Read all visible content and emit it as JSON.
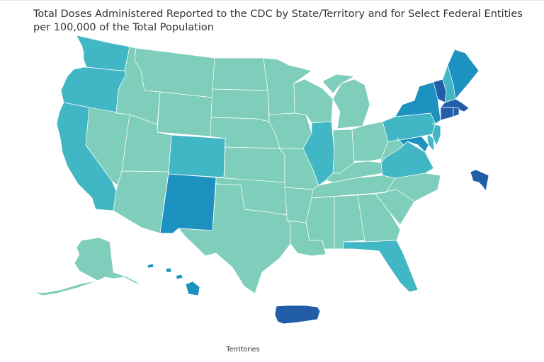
{
  "map": {
    "title_line1": "Total Doses Administered Reported to the CDC by State/Territory and for Select Federal Entities",
    "title_line2": "per 100,000 of the Total Population",
    "territories_label": "Territories"
  },
  "colors": {
    "lowest": "#7fcdbb",
    "low": "#41b6c4",
    "mid": "#1d91c0",
    "high": "#225ea8",
    "stroke": "#ffffff"
  },
  "regions": [
    {
      "name": "Washington",
      "level": "low"
    },
    {
      "name": "Oregon",
      "level": "low"
    },
    {
      "name": "California",
      "level": "low"
    },
    {
      "name": "Nevada",
      "level": "lowest"
    },
    {
      "name": "Idaho",
      "level": "lowest"
    },
    {
      "name": "Montana",
      "level": "lowest"
    },
    {
      "name": "Wyoming",
      "level": "lowest"
    },
    {
      "name": "Utah",
      "level": "lowest"
    },
    {
      "name": "Arizona",
      "level": "lowest"
    },
    {
      "name": "Colorado",
      "level": "low"
    },
    {
      "name": "New Mexico",
      "level": "mid"
    },
    {
      "name": "North Dakota",
      "level": "lowest"
    },
    {
      "name": "South Dakota",
      "level": "lowest"
    },
    {
      "name": "Nebraska",
      "level": "lowest"
    },
    {
      "name": "Kansas",
      "level": "lowest"
    },
    {
      "name": "Oklahoma",
      "level": "lowest"
    },
    {
      "name": "Texas",
      "level": "lowest"
    },
    {
      "name": "Minnesota",
      "level": "lowest"
    },
    {
      "name": "Iowa",
      "level": "lowest"
    },
    {
      "name": "Missouri",
      "level": "lowest"
    },
    {
      "name": "Arkansas",
      "level": "lowest"
    },
    {
      "name": "Louisiana",
      "level": "lowest"
    },
    {
      "name": "Wisconsin",
      "level": "lowest"
    },
    {
      "name": "Illinois",
      "level": "low"
    },
    {
      "name": "Michigan",
      "level": "lowest"
    },
    {
      "name": "Indiana",
      "level": "lowest"
    },
    {
      "name": "Ohio",
      "level": "lowest"
    },
    {
      "name": "Kentucky",
      "level": "lowest"
    },
    {
      "name": "Tennessee",
      "level": "lowest"
    },
    {
      "name": "Mississippi",
      "level": "lowest"
    },
    {
      "name": "Alabama",
      "level": "lowest"
    },
    {
      "name": "Georgia",
      "level": "lowest"
    },
    {
      "name": "Florida",
      "level": "low"
    },
    {
      "name": "South Carolina",
      "level": "lowest"
    },
    {
      "name": "North Carolina",
      "level": "lowest"
    },
    {
      "name": "Virginia",
      "level": "low"
    },
    {
      "name": "West Virginia",
      "level": "lowest"
    },
    {
      "name": "Maryland",
      "level": "mid"
    },
    {
      "name": "Delaware",
      "level": "low"
    },
    {
      "name": "New Jersey",
      "level": "low"
    },
    {
      "name": "Pennsylvania",
      "level": "low"
    },
    {
      "name": "New York",
      "level": "mid"
    },
    {
      "name": "Vermont",
      "level": "high"
    },
    {
      "name": "New Hampshire",
      "level": "low"
    },
    {
      "name": "Maine",
      "level": "mid"
    },
    {
      "name": "Massachusetts",
      "level": "high"
    },
    {
      "name": "Connecticut",
      "level": "high"
    },
    {
      "name": "Rhode Island",
      "level": "high"
    },
    {
      "name": "Alaska",
      "level": "lowest"
    },
    {
      "name": "Hawaii",
      "level": "mid"
    },
    {
      "name": "Puerto Rico",
      "level": "high"
    },
    {
      "name": "Federal entity (inset)",
      "level": "high"
    }
  ]
}
